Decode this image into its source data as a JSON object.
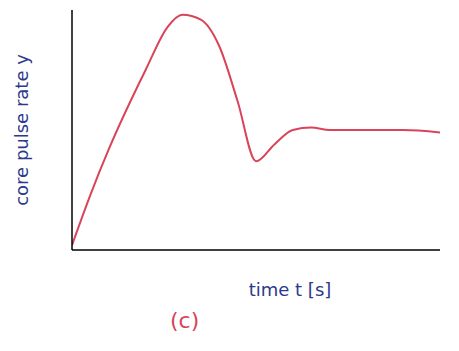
{
  "chart_data": {
    "type": "line",
    "x_label": "time t [s]",
    "y_label": "core pulse rate y",
    "annotation": "(c)",
    "x": [
      0,
      0.5,
      1,
      2,
      2.6,
      3,
      3.5,
      4,
      4.5,
      5,
      5.5,
      6,
      6.5,
      7,
      8,
      9,
      10
    ],
    "values": [
      0.2,
      2.3,
      4.2,
      7.5,
      9.3,
      9.8,
      9.6,
      8.5,
      6.2,
      3.7,
      4.4,
      5.0,
      5.1,
      5.0,
      5.0,
      5.0,
      4.9
    ],
    "color": "#d9445a",
    "xlim": [
      0,
      10
    ],
    "ylim": [
      0,
      10
    ],
    "grid": false,
    "tick_labels": false
  }
}
